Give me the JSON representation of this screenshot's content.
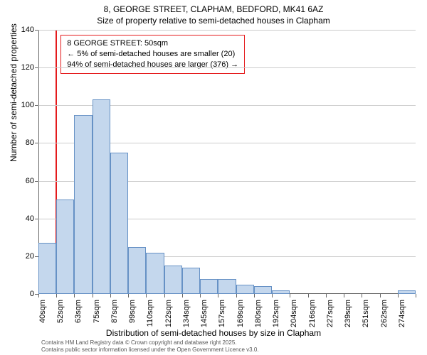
{
  "title": "8, GEORGE STREET, CLAPHAM, BEDFORD, MK41 6AZ",
  "subtitle": "Size of property relative to semi-detached houses in Clapham",
  "y_axis_title": "Number of semi-detached properties",
  "x_axis_title": "Distribution of semi-detached houses by size in Clapham",
  "footer_line1": "Contains HM Land Registry data © Crown copyright and database right 2025.",
  "footer_line2": "Contains public sector information licensed under the Open Government Licence v3.0.",
  "info_box": {
    "line1": "8 GEORGE STREET: 50sqm",
    "line2": "← 5% of semi-detached houses are smaller (20)",
    "line3": "94% of semi-detached houses are larger (376) →"
  },
  "chart": {
    "type": "histogram",
    "background_color": "#ffffff",
    "grid_color": "#cccccc",
    "bar_fill": "#c4d7ed",
    "bar_border": "#6691c5",
    "ref_line_color": "#e41a1c",
    "ylim": [
      0,
      140
    ],
    "ytick_step": 20,
    "categories": [
      "40sqm",
      "52sqm",
      "63sqm",
      "75sqm",
      "87sqm",
      "99sqm",
      "110sqm",
      "122sqm",
      "134sqm",
      "145sqm",
      "157sqm",
      "169sqm",
      "180sqm",
      "192sqm",
      "204sqm",
      "216sqm",
      "227sqm",
      "239sqm",
      "251sqm",
      "262sqm",
      "274sqm"
    ],
    "values": [
      27,
      50,
      95,
      103,
      75,
      25,
      22,
      15,
      14,
      8,
      8,
      5,
      4,
      2,
      0,
      0,
      0,
      0,
      0,
      0,
      2
    ],
    "ref_line_category_index": 1,
    "title_fontsize": 12,
    "label_fontsize": 12,
    "tick_fontsize": 11
  }
}
